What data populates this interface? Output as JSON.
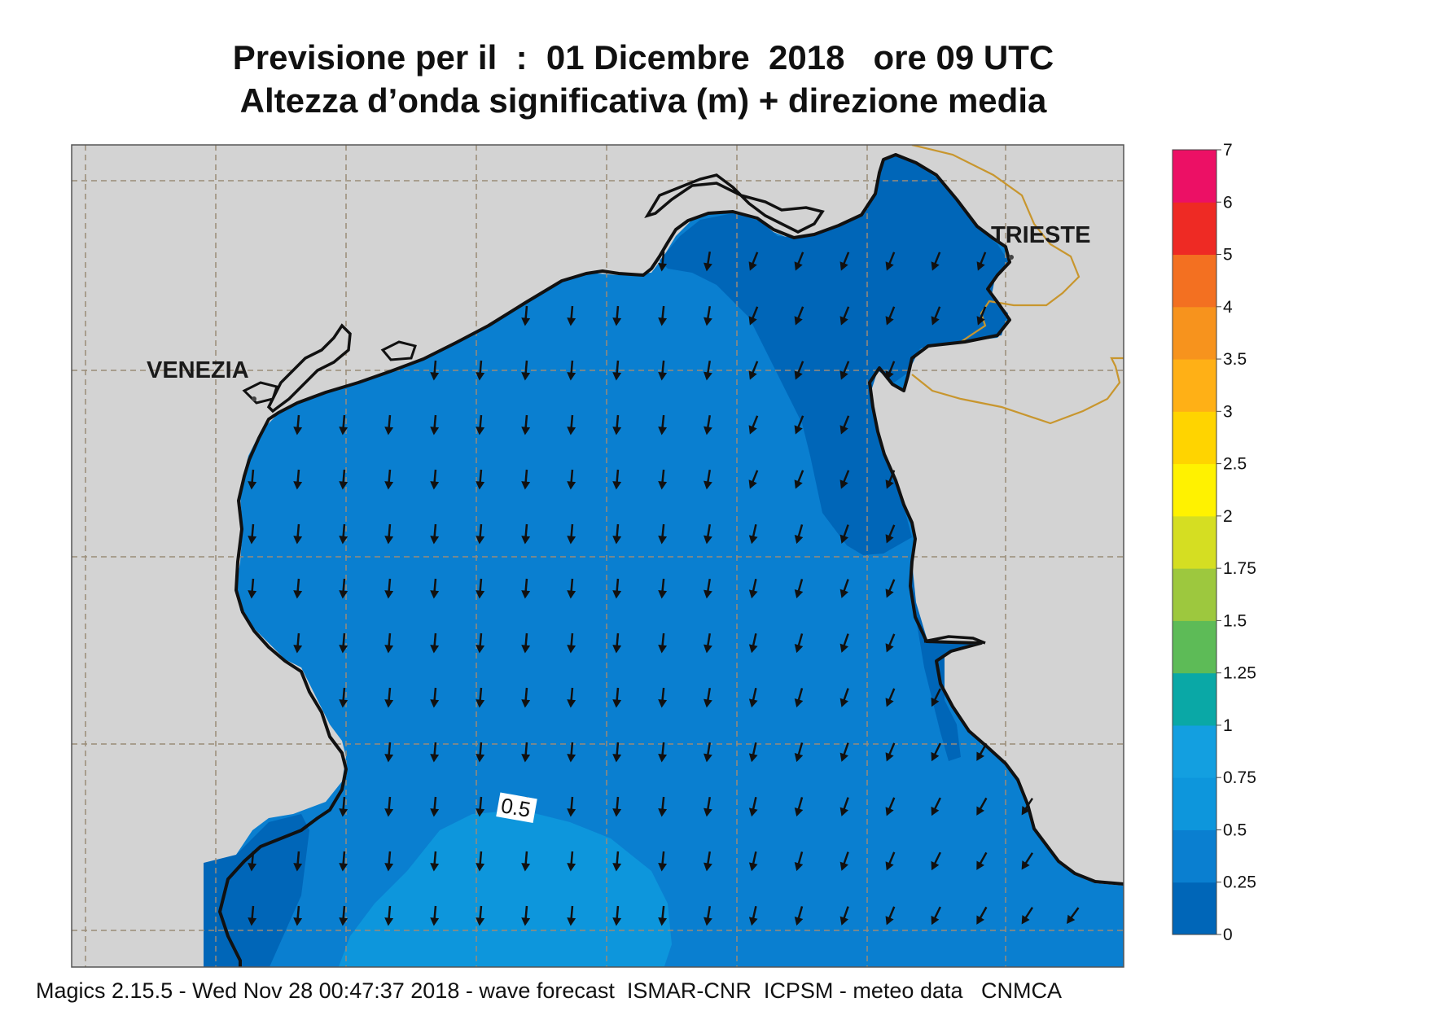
{
  "title": {
    "line1": "Previsione per il  :  01 Dicembre  2018   ore 09 UTC",
    "line2": "Altezza d’onda significativa (m) + direzione media"
  },
  "map": {
    "cities": [
      {
        "name": "VENEZIA"
      },
      {
        "name": "TRIESTE"
      }
    ],
    "contour_label": "0.5",
    "colors": {
      "land": "#d3d3d3",
      "sea_0_025": "#0066b8",
      "sea_025_05": "#0a7fd0",
      "sea_05_075": "#0d96dc",
      "coast": "#111111",
      "border": "#c8962e",
      "grid": "#9a8c78",
      "arrow": "#111111"
    },
    "wave_direction": "towards south (southerly-moving waves, veering to southwest in the east)"
  },
  "legend": {
    "title": "",
    "ticks": [
      "7",
      "6",
      "5",
      "4",
      "3.5",
      "3",
      "2.5",
      "2",
      "1.75",
      "1.5",
      "1.25",
      "1",
      "0.75",
      "0.5",
      "0.25",
      "0"
    ],
    "colors": [
      "#0066b8",
      "#0a7fd0",
      "#0d96dc",
      "#139fe0",
      "#0aa8a6",
      "#5dbb57",
      "#9dc83e",
      "#d5de22",
      "#fff200",
      "#ffd400",
      "#ffb016",
      "#f7931d",
      "#f37021",
      "#ee2a24",
      "#ec1065"
    ]
  },
  "footer": {
    "text": "Magics 2.15.5 - Wed Nov 28 00:47:37 2018 - wave forecast  ISMAR-CNR  ICPSM - meteo data   CNMCA"
  }
}
